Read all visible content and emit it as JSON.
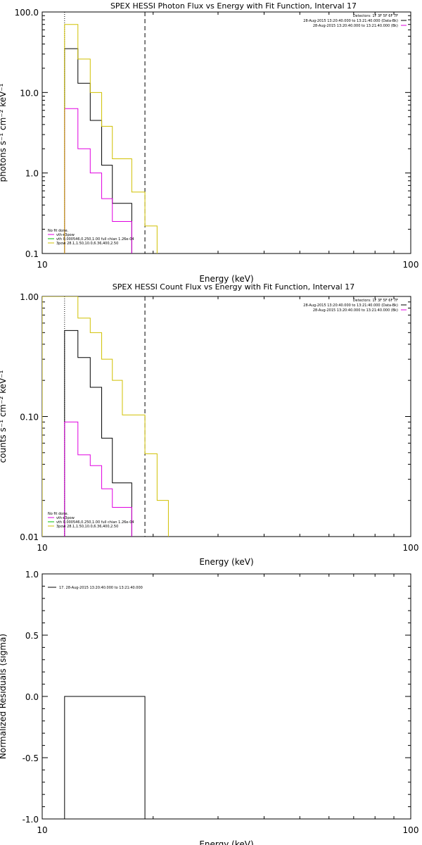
{
  "chart_data": [
    {
      "type": "line",
      "title": "SPEX HESSI Photon Flux vs Energy with Fit Function, Interval 17",
      "xlabel": "Energy (keV)",
      "ylabel": "photons s⁻¹ cm⁻² keV⁻¹",
      "x_scale": "log",
      "y_scale": "log",
      "xlim": [
        10,
        100
      ],
      "ylim": [
        0.1,
        100
      ],
      "x_ticks": [
        "10",
        "100"
      ],
      "y_ticks": [
        "0.1",
        "1.0",
        "10.0",
        "100.0"
      ],
      "vlines": [
        {
          "x": 11.5,
          "style": "dotted",
          "color": "#000000"
        },
        {
          "x": 19.0,
          "style": "dashed",
          "color": "#000000"
        }
      ],
      "legend_top": [
        {
          "text": "Detectors: 1F 3F 5F 6F 7F",
          "color": "#000000"
        },
        {
          "text": "28-Aug-2015 13:20:40.000 to 13:21:40.000 (Data-Bk)",
          "color": "#000000"
        },
        {
          "text": "28-Aug-2015 13:20:40.000 to 13:21:40.000 (Bk)",
          "color": "#e000e0"
        }
      ],
      "legend_bottom": [
        {
          "text": "No fit done.",
          "color": "#000000"
        },
        {
          "text": "vth+3pow",
          "color": "#e000e0"
        },
        {
          "text": "vth 0.000546,0.250,1.00  full chian 1.26e-04",
          "color": "#00c000"
        },
        {
          "text": "3pow 28.1,1.50,10.0,6.36,400,2.50",
          "color": "#d0c000"
        }
      ],
      "edges": [
        11.5,
        12.5,
        13.5,
        14.5,
        15.5,
        16.5,
        17.5,
        19.0,
        20.5,
        22.0
      ],
      "series": [
        {
          "name": "Data-Bk",
          "color": "#000000",
          "values": [
            35,
            13,
            4.5,
            1.25,
            0.42,
            0.42
          ]
        },
        {
          "name": "Bk",
          "color": "#e000e0",
          "values": [
            6.3,
            2.0,
            1.0,
            0.48,
            0.25,
            0.25
          ]
        },
        {
          "name": "3pow",
          "color": "#d0c000",
          "values": [
            70,
            26,
            10,
            3.8,
            1.5,
            1.5,
            0.58,
            0.22
          ]
        }
      ]
    },
    {
      "type": "line",
      "title": "SPEX HESSI Count Flux vs Energy with Fit Function, Interval 17",
      "xlabel": "Energy (keV)",
      "ylabel": "counts s⁻¹ cm⁻² keV⁻¹",
      "x_scale": "log",
      "y_scale": "log",
      "xlim": [
        10,
        100
      ],
      "ylim": [
        0.01,
        1.0
      ],
      "x_ticks": [
        "10",
        "100"
      ],
      "y_ticks": [
        "0.01",
        "0.10",
        "1.00"
      ],
      "vlines": [
        {
          "x": 11.5,
          "style": "dotted",
          "color": "#000000"
        },
        {
          "x": 19.0,
          "style": "dashed",
          "color": "#000000"
        }
      ],
      "legend_top": [
        {
          "text": "Detectors: 1F 3F 5F 6F 7F",
          "color": "#000000"
        },
        {
          "text": "28-Aug-2015 13:20:40.000 to 13:21:40.000 (Data-Bk)",
          "color": "#000000"
        },
        {
          "text": "28-Aug-2015 13:20:40.000 to 13:21:40.000 (Bk)",
          "color": "#e000e0"
        }
      ],
      "legend_bottom": [
        {
          "text": "No fit done.",
          "color": "#000000"
        },
        {
          "text": "vth+3pow",
          "color": "#e000e0"
        },
        {
          "text": "vth 0.000546,0.250,1.00  full chian 1.26e-04",
          "color": "#00c000"
        },
        {
          "text": "3pow 28.1,1.50,10.0,6.36,400,2.50",
          "color": "#d0c000"
        }
      ],
      "edges": [
        10.0,
        11.5,
        12.5,
        13.5,
        14.5,
        15.5,
        16.5,
        17.5,
        19.0,
        20.5,
        22.0
      ],
      "series": [
        {
          "name": "Data-Bk",
          "color": "#000000",
          "start": 1,
          "values": [
            0.52,
            0.31,
            0.175,
            0.066,
            0.028,
            0.028
          ]
        },
        {
          "name": "Bk",
          "color": "#e000e0",
          "start": 1,
          "values": [
            0.09,
            0.048,
            0.039,
            0.025,
            0.0175,
            0.0175
          ]
        },
        {
          "name": "3pow",
          "color": "#d0c000",
          "start": 0,
          "values": [
            1.0,
            1.0,
            0.66,
            0.5,
            0.3,
            0.2,
            0.103,
            0.103,
            0.049,
            0.02
          ]
        }
      ]
    },
    {
      "type": "line",
      "title": "",
      "xlabel": "Energy (keV)",
      "ylabel": "Normalized Residuals (sigma)",
      "x_scale": "log",
      "y_scale": "linear",
      "xlim": [
        10,
        100
      ],
      "ylim": [
        -1.0,
        1.0
      ],
      "x_ticks": [
        "10",
        "100"
      ],
      "y_ticks": [
        "-1.0",
        "-0.5",
        "0.0",
        "0.5",
        "1.0"
      ],
      "legend_top": [
        {
          "text": "17. 28-Aug-2015 13:20:40.000 to 13:21:40.000",
          "color": "#000000"
        }
      ],
      "edges": [
        11.5,
        19.0
      ],
      "series": [
        {
          "name": "17",
          "color": "#000000",
          "values": [
            0.0
          ]
        }
      ]
    }
  ]
}
